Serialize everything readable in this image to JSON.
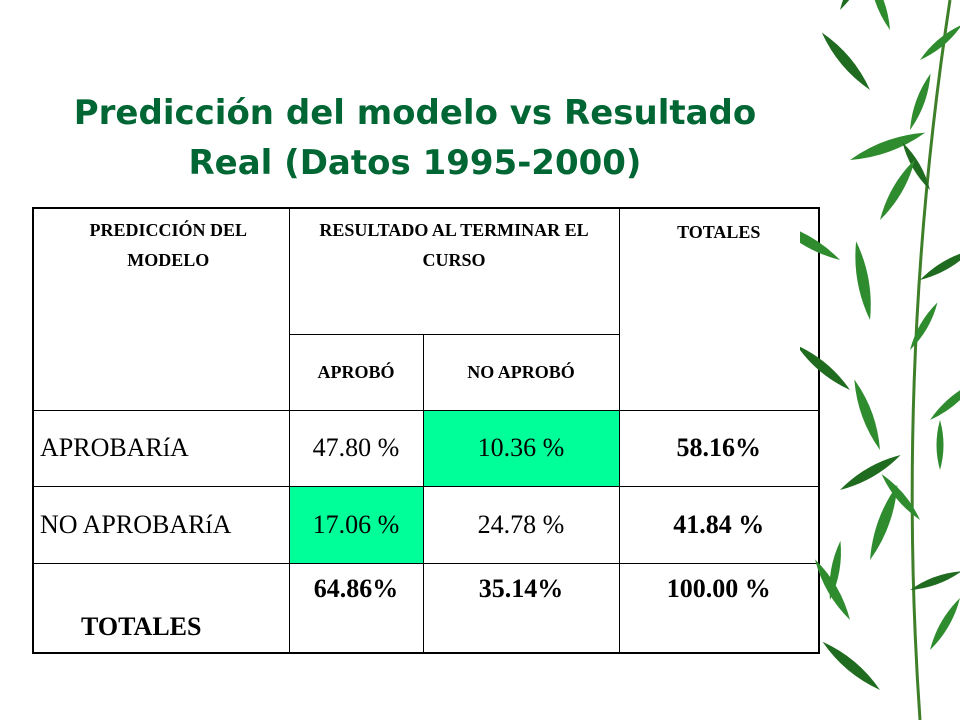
{
  "slide": {
    "title_line1": "Predicción del modelo vs Resultado",
    "title_line2": "Real (Datos 1995-2000)"
  },
  "table": {
    "header": {
      "prediction": "PREDICCIÓN DEL MODELO",
      "result": "RESULTADO AL TERMINAR EL CURSO",
      "totals": "TOTALES",
      "approved": "APROBÓ",
      "not_approved": "NO APROBÓ"
    },
    "rows": [
      {
        "label": "APROBARíA",
        "approved": "47.80 %",
        "not_approved": "10.36 %",
        "total": "58.16%"
      },
      {
        "label": "NO APROBARíA",
        "approved": "17.06 %",
        "not_approved": "24.78 %",
        "total": "41.84 %"
      }
    ],
    "totals_row": {
      "label": "TOTALES",
      "approved": "64.86%",
      "not_approved": "35.14%",
      "total": "100.00 %"
    }
  },
  "colors": {
    "title": "#006633",
    "highlight": "#00ff99",
    "bamboo_leaf": "#2e8b2e"
  },
  "decoration": {
    "icon": "bamboo-leaves-icon"
  }
}
